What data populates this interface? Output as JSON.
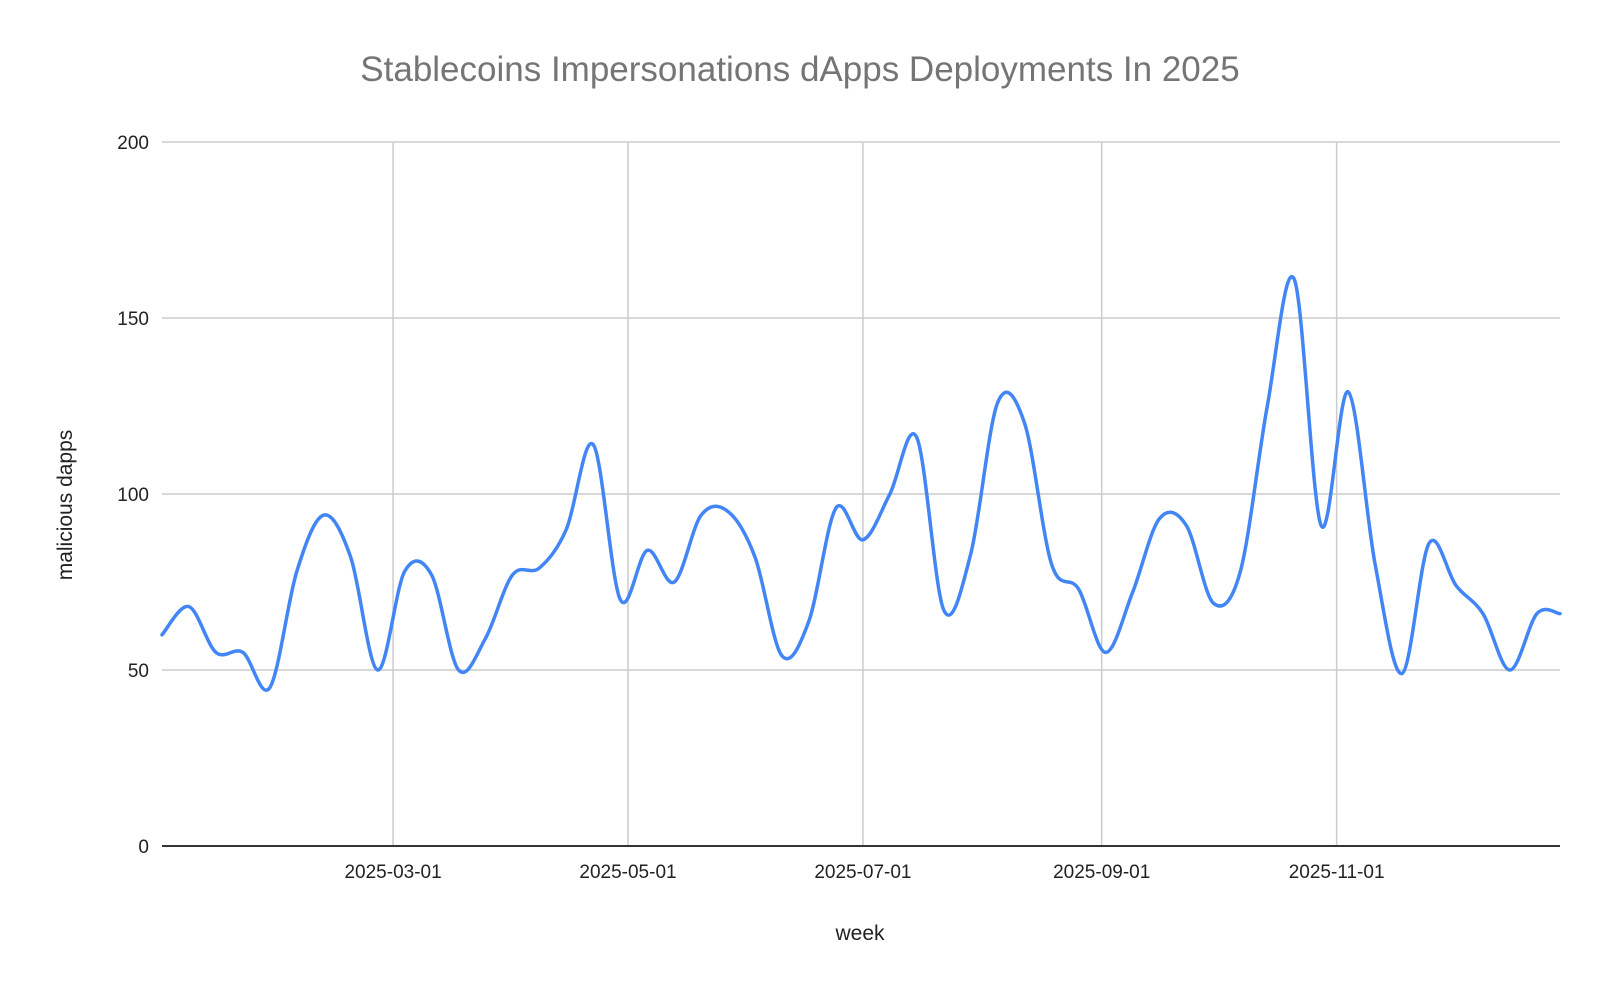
{
  "chart_data": {
    "type": "line",
    "title": "Stablecoins Impersonations dApps Deployments In 2025",
    "xlabel": "week",
    "ylabel": "malicious dapps",
    "ylim": [
      0,
      200
    ],
    "yticks": [
      0,
      50,
      100,
      150,
      200
    ],
    "xlim": [
      "2024-12-31",
      "2025-12-29"
    ],
    "xticks": [
      "2025-03-01",
      "2025-05-01",
      "2025-07-01",
      "2025-09-01",
      "2025-11-01"
    ],
    "grid": true,
    "series": [
      {
        "name": "malicious dapps",
        "color": "#4285f4",
        "x": [
          "2024-12-31",
          "2025-01-07",
          "2025-01-14",
          "2025-01-21",
          "2025-01-28",
          "2025-02-04",
          "2025-02-11",
          "2025-02-18",
          "2025-02-25",
          "2025-03-04",
          "2025-03-11",
          "2025-03-18",
          "2025-03-25",
          "2025-04-01",
          "2025-04-08",
          "2025-04-15",
          "2025-04-22",
          "2025-04-29",
          "2025-05-06",
          "2025-05-13",
          "2025-05-20",
          "2025-05-27",
          "2025-06-03",
          "2025-06-10",
          "2025-06-17",
          "2025-06-24",
          "2025-07-01",
          "2025-07-08",
          "2025-07-15",
          "2025-07-22",
          "2025-07-29",
          "2025-08-05",
          "2025-08-12",
          "2025-08-19",
          "2025-08-26",
          "2025-09-02",
          "2025-09-09",
          "2025-09-16",
          "2025-09-23",
          "2025-09-30",
          "2025-10-07",
          "2025-10-14",
          "2025-10-21",
          "2025-10-28",
          "2025-11-04",
          "2025-11-11",
          "2025-11-18",
          "2025-11-25",
          "2025-12-02",
          "2025-12-09",
          "2025-12-16",
          "2025-12-23",
          "2025-12-29"
        ],
        "values": [
          60,
          68,
          55,
          55,
          45,
          78,
          94,
          82,
          50,
          78,
          77,
          50,
          59,
          77,
          79,
          90,
          114,
          70,
          84,
          75,
          94,
          95,
          82,
          54,
          64,
          96,
          87,
          100,
          116,
          67,
          83,
          126,
          120,
          80,
          73,
          55,
          72,
          93,
          91,
          69,
          78,
          125,
          161,
          91,
          129,
          80,
          49,
          86,
          74,
          66,
          50,
          66,
          66
        ]
      }
    ]
  }
}
